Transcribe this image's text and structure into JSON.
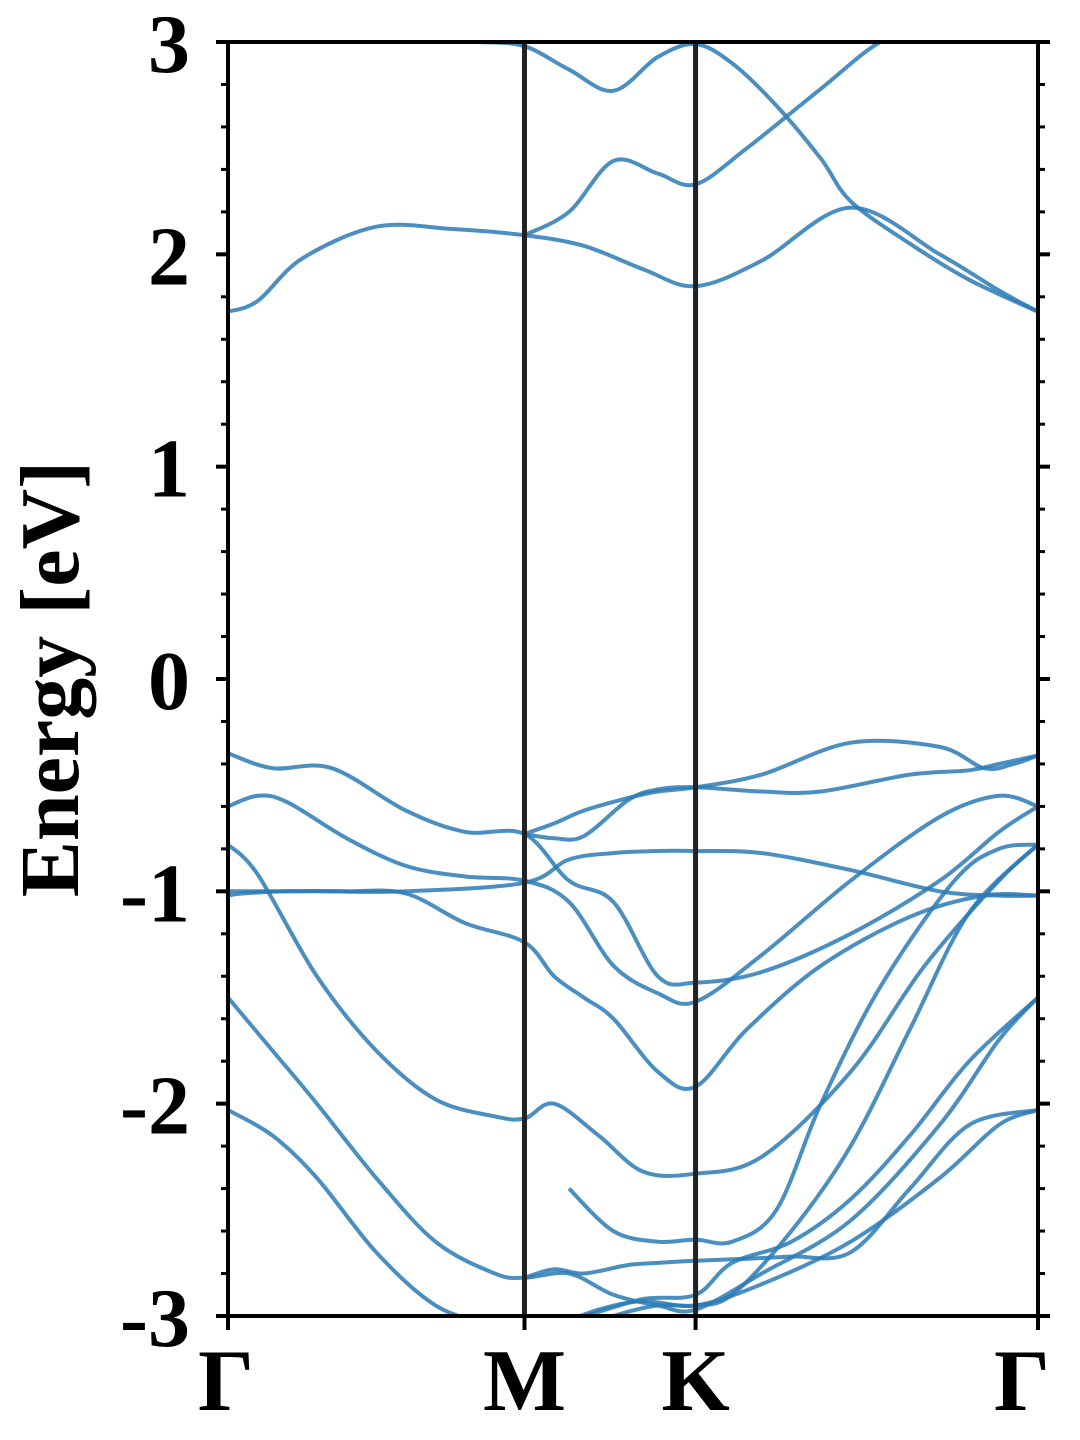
{
  "chart_data": {
    "type": "line",
    "title": "",
    "xlabel": "",
    "ylabel": "Energy [eV]",
    "ylim": [
      -3,
      3
    ],
    "y_ticks": [
      "-3",
      "-2",
      "-1",
      "0",
      "1",
      "2",
      "3"
    ],
    "y_tick_values": [
      -3,
      -2,
      -1,
      0,
      1,
      2,
      3
    ],
    "y_minor_step": 0.2,
    "x_ticks": [
      "Γ",
      "M",
      "K",
      "Γ"
    ],
    "x_tick_positions": [
      0,
      1.0,
      1.577,
      2.732
    ],
    "xlim": [
      0,
      2.732
    ],
    "high_symmetry_lines": [
      1.0,
      1.577
    ],
    "line_color": "#2c7bb6",
    "grid": false,
    "legend": "none",
    "series": [
      {
        "x": [
          0,
          0.15,
          0.3,
          0.5,
          0.7,
          0.9,
          1.0,
          1.1,
          1.25,
          1.4,
          1.577,
          1.8,
          2.1,
          2.4,
          2.6,
          2.732
        ],
        "y": [
          -2.03,
          -2.15,
          -2.35,
          -2.7,
          -2.95,
          -3.05,
          -3.1,
          -3.05,
          -2.97,
          -2.93,
          -2.95,
          -2.85,
          -2.65,
          -2.35,
          -2.1,
          -2.03
        ]
      },
      {
        "x": [
          0,
          0.15,
          0.3,
          0.5,
          0.7,
          0.9,
          1.0,
          1.15,
          1.3,
          1.45,
          1.577,
          1.8,
          2.1,
          2.4,
          2.6,
          2.732
        ],
        "y": [
          -1.5,
          -1.75,
          -2.0,
          -2.35,
          -2.65,
          -2.8,
          -2.82,
          -2.8,
          -2.9,
          -2.95,
          -2.97,
          -2.8,
          -2.55,
          -2.1,
          -1.7,
          -1.5
        ]
      },
      {
        "x": [
          0,
          0.1,
          0.3,
          0.5,
          0.7,
          0.9,
          1.0,
          1.1,
          1.25,
          1.4,
          1.577,
          1.8,
          2.1,
          2.35,
          2.6,
          2.732
        ],
        "y": [
          -0.78,
          -0.92,
          -1.4,
          -1.75,
          -1.98,
          -2.06,
          -2.07,
          -2.0,
          -2.15,
          -2.32,
          -2.33,
          -2.25,
          -1.85,
          -1.35,
          -0.95,
          -0.78
        ]
      },
      {
        "x": [
          0,
          0.05,
          0.2,
          0.4,
          0.6,
          0.8,
          1.0,
          1.1,
          1.2,
          1.3,
          1.45,
          1.577,
          1.75,
          2.0,
          2.3,
          2.55,
          2.732
        ],
        "y": [
          -1.02,
          -1.01,
          -1.0,
          -1.0,
          -1.01,
          -1.15,
          -1.24,
          -1.4,
          -1.5,
          -1.6,
          -1.85,
          -1.92,
          -1.65,
          -1.35,
          -1.12,
          -1.02,
          -1.02
        ]
      },
      {
        "x": [
          0,
          0.1,
          0.2,
          0.4,
          0.6,
          0.8,
          1.0,
          1.15,
          1.3,
          1.45,
          1.577,
          1.8,
          2.1,
          2.4,
          2.6,
          2.732
        ],
        "y": [
          -0.6,
          -0.55,
          -0.58,
          -0.75,
          -0.88,
          -0.93,
          -0.95,
          -1.05,
          -1.35,
          -1.48,
          -1.52,
          -1.3,
          -0.95,
          -0.65,
          -0.55,
          -0.6
        ]
      },
      {
        "x": [
          0,
          0.15,
          0.35,
          0.6,
          0.8,
          1.0,
          1.15,
          1.3,
          1.45,
          1.577,
          1.8,
          2.1,
          2.4,
          2.6,
          2.732
        ],
        "y": [
          -0.35,
          -0.42,
          -0.42,
          -0.62,
          -0.72,
          -0.73,
          -0.95,
          -1.05,
          -1.4,
          -1.43,
          -1.38,
          -1.2,
          -0.95,
          -0.72,
          -0.6
        ]
      },
      {
        "x": [
          0,
          0.3,
          0.6,
          1.0,
          1.15,
          1.3,
          1.45,
          1.577,
          1.8,
          2.1,
          2.4,
          2.6,
          2.732
        ],
        "y": [
          -1.0,
          -1.0,
          -1.0,
          -0.96,
          -0.85,
          -0.82,
          -0.81,
          -0.81,
          -0.82,
          -0.9,
          -1.0,
          -1.02,
          -1.02
        ]
      },
      {
        "x": [
          1.0,
          1.1,
          1.2,
          1.35,
          1.45,
          1.577,
          1.8,
          2.0,
          2.3,
          2.5,
          2.6,
          2.732
        ],
        "y": [
          -0.73,
          -0.75,
          -0.74,
          -0.57,
          -0.52,
          -0.51,
          -0.53,
          -0.53,
          -0.45,
          -0.43,
          -0.4,
          -0.36
        ]
      },
      {
        "x": [
          1.0,
          1.1,
          1.2,
          1.35,
          1.45,
          1.577,
          1.8,
          2.1,
          2.4,
          2.55,
          2.65,
          2.732
        ],
        "y": [
          -0.73,
          -0.68,
          -0.62,
          -0.56,
          -0.53,
          -0.51,
          -0.45,
          -0.3,
          -0.32,
          -0.42,
          -0.4,
          -0.36
        ]
      },
      {
        "x": [
          1.0,
          1.1,
          1.2,
          1.35,
          1.45,
          1.577,
          1.75,
          1.9,
          2.1,
          2.3,
          2.5,
          2.732
        ],
        "y": [
          -2.82,
          -2.78,
          -2.8,
          -2.76,
          -2.75,
          -2.74,
          -2.73,
          -2.72,
          -2.7,
          -2.4,
          -2.1,
          -2.03
        ]
      },
      {
        "x": [
          1.0,
          1.2,
          1.4,
          1.577,
          1.7,
          1.9,
          2.1,
          2.3,
          2.5,
          2.732
        ],
        "y": [
          -3.05,
          -3.0,
          -2.92,
          -2.9,
          -2.75,
          -2.65,
          -2.45,
          -2.15,
          -1.8,
          -1.5
        ]
      },
      {
        "x": [
          1.1,
          1.3,
          1.45,
          1.577,
          1.7,
          1.9,
          2.1,
          2.3,
          2.5,
          2.732
        ],
        "y": [
          -3.1,
          -3.0,
          -2.95,
          -2.95,
          -2.9,
          -2.6,
          -2.2,
          -1.65,
          -1.1,
          -0.78
        ]
      },
      {
        "x": [
          1.15,
          1.3,
          1.45,
          1.577,
          1.7,
          1.85,
          2.0,
          2.2,
          2.45,
          2.6,
          2.732
        ],
        "y": [
          -2.4,
          -2.6,
          -2.65,
          -2.64,
          -2.65,
          -2.5,
          -2.0,
          -1.45,
          -0.95,
          -0.8,
          -0.78
        ]
      },
      {
        "x": [
          0,
          0.1,
          0.25,
          0.5,
          0.75,
          1.0,
          1.2,
          1.4,
          1.577,
          1.8,
          2.1,
          2.4,
          2.6,
          2.732
        ],
        "y": [
          1.73,
          1.78,
          1.98,
          2.13,
          2.12,
          2.09,
          2.04,
          1.93,
          1.85,
          1.97,
          2.22,
          2.0,
          1.83,
          1.73
        ]
      },
      {
        "x": [
          1.0,
          1.15,
          1.3,
          1.45,
          1.577,
          1.75,
          2.0,
          2.2,
          2.4,
          2.6,
          2.732
        ],
        "y": [
          2.09,
          2.2,
          2.44,
          2.38,
          2.33,
          2.5,
          2.78,
          3.0,
          3.1,
          3.1,
          3.1
        ]
      },
      {
        "x": [
          0.85,
          1.0,
          1.15,
          1.3,
          1.45,
          1.577,
          1.7,
          1.85,
          2.0,
          2.1,
          2.3,
          2.5,
          2.732
        ],
        "y": [
          3.0,
          2.98,
          2.87,
          2.77,
          2.93,
          2.99,
          2.9,
          2.7,
          2.45,
          2.25,
          2.05,
          1.88,
          1.73
        ]
      }
    ]
  }
}
